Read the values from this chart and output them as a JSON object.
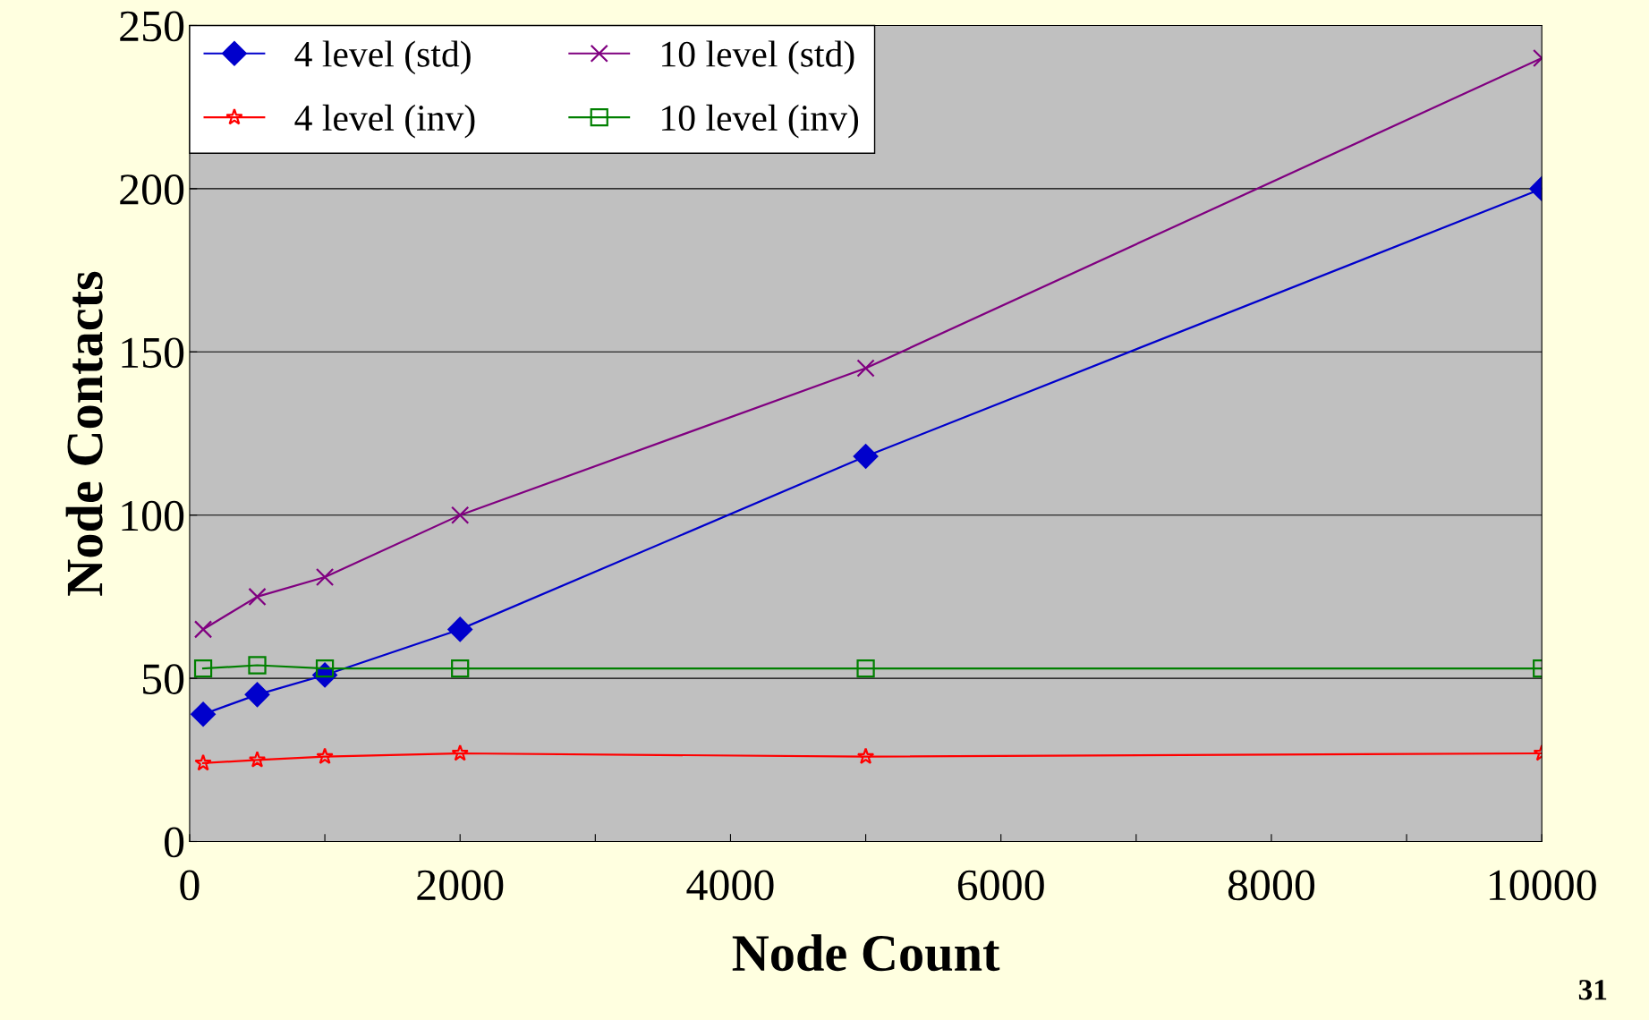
{
  "chart_data": {
    "type": "line",
    "xlabel": "Node Count",
    "ylabel": "Node Contacts",
    "x": [
      100,
      500,
      1000,
      2000,
      5000,
      10000
    ],
    "series": [
      {
        "name": "4 level (std)",
        "color": "#0000cc",
        "marker": "diamond",
        "values": [
          39,
          45,
          51,
          65,
          118,
          200
        ]
      },
      {
        "name": "10 level (std)",
        "color": "#800080",
        "marker": "cross",
        "values": [
          65,
          75,
          81,
          100,
          145,
          240
        ]
      },
      {
        "name": "4 level (inv)",
        "color": "#ff0000",
        "marker": "star",
        "values": [
          24,
          25,
          26,
          27,
          26,
          27
        ]
      },
      {
        "name": "10 level (inv)",
        "color": "#008000",
        "marker": "square",
        "values": [
          53,
          54,
          53,
          53,
          53,
          53
        ]
      }
    ],
    "xlim": [
      0,
      10000
    ],
    "ylim": [
      0,
      250
    ],
    "xticks": [
      0,
      {
        "value": 1000,
        "label": null
      },
      2000,
      {
        "value": 3000,
        "label": null
      },
      4000,
      {
        "value": 5000,
        "label": null
      },
      6000,
      {
        "value": 7000,
        "label": null
      },
      8000,
      {
        "value": 9000,
        "label": null
      },
      10000
    ],
    "yticks": [
      0,
      50,
      100,
      150,
      200,
      250
    ],
    "grid": "y",
    "legend": "top left",
    "annotations": [
      "31"
    ]
  }
}
